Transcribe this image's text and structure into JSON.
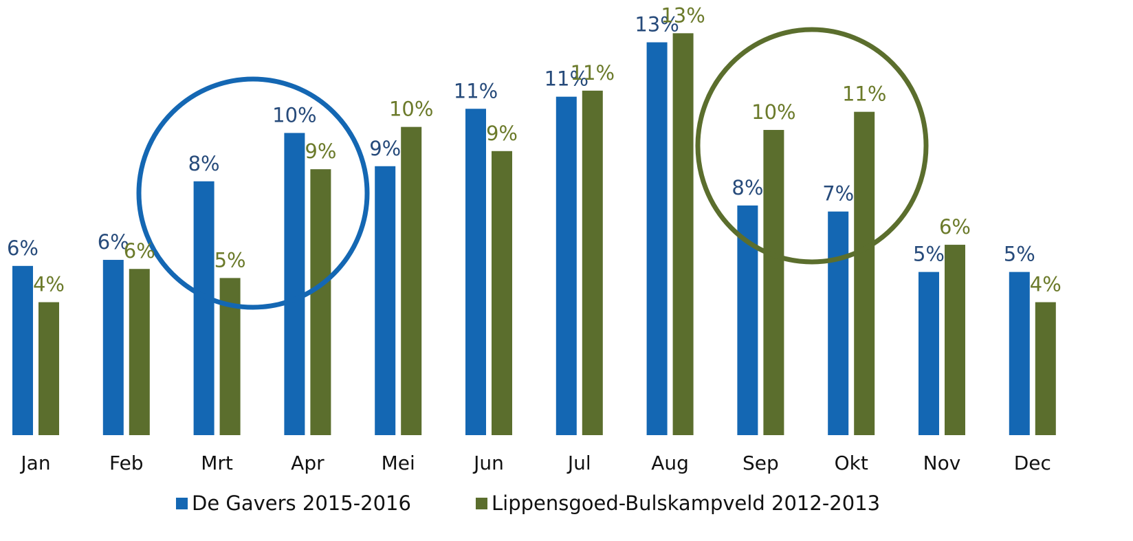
{
  "chart_data": {
    "type": "bar",
    "categories": [
      "Jan",
      "Feb",
      "Mrt",
      "Apr",
      "Mei",
      "Jun",
      "Jul",
      "Aug",
      "Sep",
      "Okt",
      "Nov",
      "Dec"
    ],
    "series": [
      {
        "name": "De Gavers 2015-2016",
        "color": "#1467b3",
        "label_color": "#264a7a",
        "values": [
          5.6,
          5.8,
          8.4,
          10.0,
          8.9,
          10.8,
          11.2,
          13.0,
          7.6,
          7.4,
          5.4,
          5.4
        ],
        "value_labels": [
          "6%",
          "6%",
          "8%",
          "10%",
          "9%",
          "11%",
          "11%",
          "13%",
          "8%",
          "7%",
          "5%",
          "5%"
        ]
      },
      {
        "name": "Lippensgoed-Bulskampveld 2012-2013",
        "color": "#5b6e2d",
        "label_color": "#6b7a2a",
        "values": [
          4.4,
          5.5,
          5.2,
          8.8,
          10.2,
          9.4,
          11.4,
          13.3,
          10.1,
          10.7,
          6.3,
          4.4
        ],
        "value_labels": [
          "4%",
          "6%",
          "5%",
          "9%",
          "10%",
          "9%",
          "11%",
          "13%",
          "10%",
          "11%",
          "6%",
          "4%"
        ]
      }
    ],
    "ylim": [
      0,
      14.4
    ],
    "grid": false,
    "legend": "bottom"
  }
}
